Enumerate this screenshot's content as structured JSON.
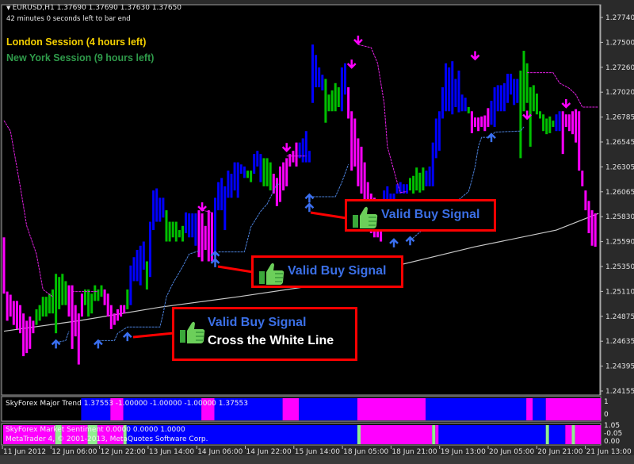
{
  "header": {
    "symbol_line": "EURUSD,H1  1.37690 1.37690 1.37630 1.37650",
    "timer": "42 minutes 0 seconds left to bar end",
    "london": "London Session (4 hours left)",
    "newyork": "New York Session (9 hours left)",
    "london_color": "#f5d000",
    "newyork_color": "#2f9a4a"
  },
  "callouts": [
    {
      "line1": "Valid Buy Signal",
      "line2": "Cross the White Line"
    },
    {
      "line1": "Valid Buy Signal"
    },
    {
      "line1": "Valid Buy Signal"
    }
  ],
  "indicators": {
    "major_trend": "SkyForex Major Trend 1.37553 -1.00000 -1.00000 -1.00000 1.37553",
    "market_sentiment": "SkyForex Market Sentiment 0.0000 0.0000 1.0000",
    "copyright": "MetaTrader 4, © 2001-2013, MetaQuotes Software Corp.",
    "trend_axis": [
      "1",
      "0"
    ],
    "sentiment_axis": [
      "1.05",
      "-0.05",
      "0.00"
    ],
    "major_trend_segments": [
      [
        0,
        24,
        "none"
      ],
      [
        24,
        33,
        "blue"
      ],
      [
        33,
        37,
        "magenta"
      ],
      [
        37,
        61,
        "blue"
      ],
      [
        61,
        65,
        "magenta"
      ],
      [
        65,
        86,
        "blue"
      ],
      [
        86,
        91,
        "magenta"
      ],
      [
        91,
        109,
        "blue"
      ],
      [
        109,
        130,
        "magenta"
      ],
      [
        130,
        161,
        "blue"
      ],
      [
        161,
        163,
        "magenta"
      ],
      [
        163,
        167,
        "blue"
      ],
      [
        167,
        183,
        "magenta"
      ]
    ],
    "sentiment_segments": [
      [
        0,
        16,
        "magenta"
      ],
      [
        16,
        18,
        "green"
      ],
      [
        18,
        26,
        "magenta"
      ],
      [
        26,
        29,
        "green"
      ],
      [
        29,
        37,
        "magenta"
      ],
      [
        37,
        38,
        "green"
      ],
      [
        38,
        109,
        "blue"
      ],
      [
        109,
        110,
        "green"
      ],
      [
        110,
        132,
        "magenta"
      ],
      [
        132,
        133,
        "green"
      ],
      [
        133,
        134,
        "magenta"
      ],
      [
        134,
        167,
        "blue"
      ],
      [
        167,
        168,
        "green"
      ],
      [
        168,
        173,
        "blue"
      ],
      [
        173,
        175,
        "magenta"
      ],
      [
        175,
        176,
        "green"
      ],
      [
        176,
        183,
        "magenta"
      ]
    ]
  },
  "colors": {
    "blue": "#0000ff",
    "magenta": "#ff00ff",
    "green": "#00c000",
    "lightgreen": "#90ee90",
    "background": "#000000",
    "ma_line": "#c8c8c8",
    "support_line": "#4a7fd8",
    "resist_line": "#e020e0",
    "callout_border": "#ff0000"
  },
  "chart_data": {
    "type": "bar",
    "symbol": "EURUSD",
    "timeframe": "H1",
    "ylim": [
      1.24155,
      1.2774
    ],
    "y_ticks": [
      "1.27740",
      "1.27500",
      "1.27260",
      "1.27020",
      "1.26785",
      "1.26545",
      "1.26305",
      "1.26065",
      "1.25830",
      "1.25590",
      "1.25350",
      "1.25110",
      "1.24875",
      "1.24635",
      "1.24395",
      "1.24155"
    ],
    "x_ticks": [
      "11 Jun 2012",
      "12 Jun 06:00",
      "12 Jun 22:00",
      "13 Jun 14:00",
      "14 Jun 06:00",
      "14 Jun 22:00",
      "15 Jun 14:00",
      "18 Jun 05:00",
      "18 Jun 21:00",
      "19 Jun 13:00",
      "20 Jun 05:00",
      "20 Jun 21:00",
      "21 Jun 13:00"
    ],
    "bar_fields": [
      "high",
      "low",
      "color"
    ],
    "bars": [
      [
        1.2563,
        1.2509,
        "m"
      ],
      [
        1.2511,
        1.2483,
        "m"
      ],
      [
        1.2508,
        1.2487,
        "m"
      ],
      [
        1.2502,
        1.2479,
        "m"
      ],
      [
        1.2502,
        1.2475,
        "m"
      ],
      [
        1.2498,
        1.2471,
        "m"
      ],
      [
        1.249,
        1.2449,
        "m"
      ],
      [
        1.2483,
        1.2452,
        "m"
      ],
      [
        1.2487,
        1.2456,
        "m"
      ],
      [
        1.2483,
        1.2471,
        "m"
      ],
      [
        1.2494,
        1.2479,
        "g"
      ],
      [
        1.2498,
        1.2483,
        "g"
      ],
      [
        1.2506,
        1.2487,
        "g"
      ],
      [
        1.2506,
        1.2487,
        "g"
      ],
      [
        1.2509,
        1.249,
        "g"
      ],
      [
        1.2513,
        1.249,
        "g"
      ],
      [
        1.2528,
        1.2471,
        "g"
      ],
      [
        1.2525,
        1.2494,
        "g"
      ],
      [
        1.2528,
        1.2498,
        "g"
      ],
      [
        1.2521,
        1.2498,
        "g"
      ],
      [
        1.2517,
        1.2487,
        "m"
      ],
      [
        1.2517,
        1.2456,
        "m"
      ],
      [
        1.2498,
        1.2468,
        "m"
      ],
      [
        1.249,
        1.2441,
        "m"
      ],
      [
        1.2509,
        1.2487,
        "m"
      ],
      [
        1.2513,
        1.2498,
        "g"
      ],
      [
        1.2513,
        1.2487,
        "g"
      ],
      [
        1.2509,
        1.249,
        "g"
      ],
      [
        1.2517,
        1.2502,
        "g"
      ],
      [
        1.2513,
        1.2502,
        "g"
      ],
      [
        1.2517,
        1.2506,
        "g"
      ],
      [
        1.2513,
        1.2498,
        "m"
      ],
      [
        1.2509,
        1.2487,
        "m"
      ],
      [
        1.2498,
        1.2475,
        "m"
      ],
      [
        1.249,
        1.2479,
        "m"
      ],
      [
        1.2494,
        1.2483,
        "m"
      ],
      [
        1.2498,
        1.2487,
        "m"
      ],
      [
        1.2498,
        1.249,
        "m"
      ],
      [
        1.2513,
        1.2494,
        "g"
      ],
      [
        1.2536,
        1.2498,
        "b"
      ],
      [
        1.2544,
        1.2521,
        "b"
      ],
      [
        1.2551,
        1.2521,
        "b"
      ],
      [
        1.2555,
        1.2517,
        "b"
      ],
      [
        1.2559,
        1.2532,
        "b"
      ],
      [
        1.254,
        1.2513,
        "g"
      ],
      [
        1.2578,
        1.2525,
        "b"
      ],
      [
        1.2608,
        1.257,
        "b"
      ],
      [
        1.261,
        1.2578,
        "b"
      ],
      [
        1.2601,
        1.2578,
        "b"
      ],
      [
        1.2601,
        1.2582,
        "b"
      ],
      [
        1.2589,
        1.2559,
        "g"
      ],
      [
        1.2578,
        1.2559,
        "g"
      ],
      [
        1.2578,
        1.2563,
        "g"
      ],
      [
        1.2578,
        1.2559,
        "g"
      ],
      [
        1.257,
        1.2563,
        "g"
      ],
      [
        1.2574,
        1.2559,
        "g"
      ],
      [
        1.2587,
        1.2567,
        "b"
      ],
      [
        1.2586,
        1.2563,
        "b"
      ],
      [
        1.2586,
        1.2563,
        "b"
      ],
      [
        1.2586,
        1.2555,
        "b"
      ],
      [
        1.2589,
        1.2544,
        "m"
      ],
      [
        1.2586,
        1.254,
        "m"
      ],
      [
        1.2574,
        1.2551,
        "m"
      ],
      [
        1.2589,
        1.254,
        "m"
      ],
      [
        1.2587,
        1.254,
        "m"
      ],
      [
        1.2601,
        1.2545,
        "b"
      ],
      [
        1.2616,
        1.2589,
        "b"
      ],
      [
        1.262,
        1.2589,
        "b"
      ],
      [
        1.2612,
        1.257,
        "b"
      ],
      [
        1.2627,
        1.2601,
        "b"
      ],
      [
        1.2624,
        1.2601,
        "b"
      ],
      [
        1.2635,
        1.2608,
        "b"
      ],
      [
        1.2635,
        1.2601,
        "b"
      ],
      [
        1.2633,
        1.2624,
        "b"
      ],
      [
        1.2631,
        1.262,
        "b"
      ],
      [
        1.2627,
        1.262,
        "g"
      ],
      [
        1.2627,
        1.2616,
        "g"
      ],
      [
        1.2643,
        1.2624,
        "b"
      ],
      [
        1.2646,
        1.2631,
        "b"
      ],
      [
        1.2643,
        1.2616,
        "b"
      ],
      [
        1.2639,
        1.2612,
        "g"
      ],
      [
        1.2639,
        1.2612,
        "g"
      ],
      [
        1.2635,
        1.2608,
        "g"
      ],
      [
        1.2624,
        1.2605,
        "m"
      ],
      [
        1.262,
        1.2593,
        "m"
      ],
      [
        1.2631,
        1.2597,
        "m"
      ],
      [
        1.2635,
        1.2608,
        "m"
      ],
      [
        1.2639,
        1.2612,
        "m"
      ],
      [
        1.2643,
        1.2631,
        "m"
      ],
      [
        1.2646,
        1.2635,
        "m"
      ],
      [
        1.2654,
        1.2631,
        "m"
      ],
      [
        1.2654,
        1.2639,
        "b"
      ],
      [
        1.2658,
        1.2635,
        "b"
      ],
      [
        1.2665,
        1.2635,
        "b"
      ],
      [
        1.2646,
        1.2635,
        "b"
      ],
      [
        1.2748,
        1.2692,
        "b"
      ],
      [
        1.2738,
        1.2707,
        "b"
      ],
      [
        1.2726,
        1.2707,
        "b"
      ],
      [
        1.2719,
        1.2704,
        "b"
      ],
      [
        1.2715,
        1.2673,
        "g"
      ],
      [
        1.27,
        1.2684,
        "g"
      ],
      [
        1.2704,
        1.2684,
        "g"
      ],
      [
        1.2711,
        1.2684,
        "g"
      ],
      [
        1.2707,
        1.2688,
        "g"
      ],
      [
        1.2726,
        1.2684,
        "b"
      ],
      [
        1.273,
        1.27,
        "b"
      ],
      [
        1.2707,
        1.2677,
        "m"
      ],
      [
        1.2684,
        1.2627,
        "m"
      ],
      [
        1.2677,
        1.2631,
        "m"
      ],
      [
        1.2658,
        1.2612,
        "m"
      ],
      [
        1.265,
        1.2605,
        "m"
      ],
      [
        1.2635,
        1.2593,
        "m"
      ],
      [
        1.2616,
        1.2589,
        "m"
      ],
      [
        1.2605,
        1.2567,
        "m"
      ],
      [
        1.2601,
        1.2563,
        "m"
      ],
      [
        1.2597,
        1.2563,
        "m"
      ],
      [
        1.2593,
        1.2559,
        "m"
      ],
      [
        1.2608,
        1.2586,
        "b"
      ],
      [
        1.2612,
        1.2589,
        "b"
      ],
      [
        1.2605,
        1.2597,
        "b"
      ],
      [
        1.2605,
        1.2597,
        "b"
      ],
      [
        1.2614,
        1.2605,
        "b"
      ],
      [
        1.2616,
        1.2605,
        "b"
      ],
      [
        1.2614,
        1.2605,
        "b"
      ],
      [
        1.2614,
        1.2605,
        "b"
      ],
      [
        1.262,
        1.2608,
        "g"
      ],
      [
        1.2622,
        1.2605,
        "g"
      ],
      [
        1.263,
        1.2608,
        "g"
      ],
      [
        1.2625,
        1.2606,
        "g"
      ],
      [
        1.263,
        1.2608,
        "g"
      ],
      [
        1.2627,
        1.2612,
        "b"
      ],
      [
        1.2631,
        1.2612,
        "b"
      ],
      [
        1.2654,
        1.2612,
        "b"
      ],
      [
        1.2677,
        1.2639,
        "b"
      ],
      [
        1.2684,
        1.2646,
        "b"
      ],
      [
        1.2707,
        1.2677,
        "b"
      ],
      [
        1.273,
        1.2684,
        "b"
      ],
      [
        1.2726,
        1.2684,
        "b"
      ],
      [
        1.2732,
        1.2681,
        "b"
      ],
      [
        1.2715,
        1.2688,
        "b"
      ],
      [
        1.2723,
        1.2683,
        "b"
      ],
      [
        1.27,
        1.2684,
        "b"
      ],
      [
        1.2697,
        1.2684,
        "b"
      ],
      [
        1.2688,
        1.2682,
        "g"
      ],
      [
        1.2684,
        1.2663,
        "m"
      ],
      [
        1.2678,
        1.2669,
        "m"
      ],
      [
        1.2678,
        1.2665,
        "m"
      ],
      [
        1.2679,
        1.2669,
        "m"
      ],
      [
        1.268,
        1.2665,
        "m"
      ],
      [
        1.2687,
        1.2669,
        "m"
      ],
      [
        1.2694,
        1.2671,
        "b"
      ],
      [
        1.2707,
        1.2669,
        "b"
      ],
      [
        1.2709,
        1.2684,
        "b"
      ],
      [
        1.2709,
        1.2684,
        "b"
      ],
      [
        1.2711,
        1.2684,
        "b"
      ],
      [
        1.272,
        1.2692,
        "b"
      ],
      [
        1.272,
        1.27,
        "b"
      ],
      [
        1.2715,
        1.269,
        "b"
      ],
      [
        1.2715,
        1.2692,
        "b"
      ],
      [
        1.2723,
        1.2639,
        "g"
      ],
      [
        1.2742,
        1.2684,
        "g"
      ],
      [
        1.273,
        1.2692,
        "g"
      ],
      [
        1.2707,
        1.265,
        "g"
      ],
      [
        1.2709,
        1.2684,
        "g"
      ],
      [
        1.2701,
        1.2681,
        "g"
      ],
      [
        1.2684,
        1.2677,
        "g"
      ],
      [
        1.2681,
        1.2665,
        "g"
      ],
      [
        1.2677,
        1.2662,
        "g"
      ],
      [
        1.2679,
        1.2663,
        "g"
      ],
      [
        1.2675,
        1.2669,
        "g"
      ],
      [
        1.2681,
        1.2665,
        "b"
      ],
      [
        1.2684,
        1.2665,
        "b"
      ],
      [
        1.2684,
        1.2643,
        "m"
      ],
      [
        1.2681,
        1.2669,
        "m"
      ],
      [
        1.2681,
        1.2665,
        "m"
      ],
      [
        1.2684,
        1.2662,
        "m"
      ],
      [
        1.2686,
        1.2654,
        "m"
      ],
      [
        1.2684,
        1.2627,
        "m"
      ],
      [
        1.2627,
        1.2612,
        "m"
      ],
      [
        1.2608,
        1.2589,
        "m"
      ],
      [
        1.2598,
        1.2567,
        "m"
      ],
      [
        1.2589,
        1.2555,
        "m"
      ],
      [
        1.2586,
        1.2554,
        "m"
      ]
    ],
    "moving_average": [
      [
        0,
        1.2473
      ],
      [
        23,
        1.2483
      ],
      [
        48,
        1.2496
      ],
      [
        72,
        1.2506
      ],
      [
        96,
        1.2517
      ],
      [
        121,
        1.2536
      ],
      [
        145,
        1.2554
      ],
      [
        170,
        1.257
      ],
      [
        183,
        1.2586
      ]
    ],
    "resistance_stops": [
      [
        [
          0,
          1.2675
        ],
        [
          2,
          1.2665
        ],
        [
          5,
          1.2612
        ],
        [
          7,
          1.2574
        ],
        [
          10,
          1.2547
        ],
        [
          12,
          1.2513
        ],
        [
          15,
          1.2506
        ]
      ],
      [
        [
          21,
          1.2511
        ],
        [
          29,
          1.2511
        ]
      ],
      [
        [
          61,
          1.2589
        ],
        [
          64,
          1.2587
        ]
      ],
      [
        [
          87,
          1.2641
        ],
        [
          93,
          1.2641
        ]
      ],
      [
        [
          109,
          1.2748
        ],
        [
          113,
          1.2745
        ],
        [
          115,
          1.273
        ],
        [
          117,
          1.2692
        ],
        [
          118,
          1.265
        ],
        [
          121,
          1.2616
        ],
        [
          122,
          1.2606
        ],
        [
          124,
          1.2607
        ]
      ],
      [
        [
          161,
          1.2721
        ],
        [
          169,
          1.2721
        ],
        [
          171,
          1.2711
        ],
        [
          174,
          1.2706
        ],
        [
          176,
          1.27
        ],
        [
          178,
          1.2688
        ],
        [
          183,
          1.2688
        ]
      ]
    ],
    "support_stops": [
      [
        [
          16,
          1.2462
        ],
        [
          19,
          1.2464
        ],
        [
          20,
          1.2473
        ]
      ],
      [
        [
          29,
          1.2464
        ],
        [
          34,
          1.2464
        ],
        [
          35,
          1.2471
        ],
        [
          38,
          1.2477
        ],
        [
          48,
          1.2477
        ],
        [
          49,
          1.249
        ],
        [
          50,
          1.2506
        ],
        [
          52,
          1.2519
        ],
        [
          55,
          1.2535
        ],
        [
          57,
          1.2547
        ],
        [
          60,
          1.255
        ]
      ],
      [
        [
          66,
          1.2549
        ],
        [
          74,
          1.2549
        ],
        [
          76,
          1.2573
        ],
        [
          79,
          1.2588
        ],
        [
          81,
          1.2595
        ],
        [
          84,
          1.2614
        ],
        [
          85,
          1.2614
        ]
      ],
      [
        [
          93,
          1.2602
        ],
        [
          102,
          1.2602
        ],
        [
          104,
          1.2616
        ],
        [
          106,
          1.2633
        ]
      ],
      [
        [
          125,
          1.256
        ],
        [
          128,
          1.2568
        ],
        [
          143,
          1.2607
        ],
        [
          144,
          1.2618
        ],
        [
          145,
          1.2631
        ],
        [
          146,
          1.265
        ],
        [
          147,
          1.2659
        ],
        [
          150,
          1.2659
        ],
        [
          151,
          1.2664
        ],
        [
          159,
          1.2665
        ],
        [
          160,
          1.2669
        ]
      ]
    ],
    "sell_arrows": [
      [
        61,
        1.2589
      ],
      [
        87,
        1.2646
      ],
      [
        109,
        1.2749
      ],
      [
        107,
        1.2726
      ],
      [
        145,
        1.2734
      ],
      [
        161,
        1.2677
      ],
      [
        173,
        1.2688
      ]
    ],
    "buy_arrows": [
      [
        16,
        1.2464
      ],
      [
        29,
        1.2464
      ],
      [
        38,
        1.2471
      ],
      [
        65,
        1.2549
      ],
      [
        65,
        1.2542
      ],
      [
        94,
        1.2604
      ],
      [
        94,
        1.2595
      ],
      [
        120,
        1.2561
      ],
      [
        125,
        1.2563
      ],
      [
        150,
        1.2662
      ]
    ]
  }
}
